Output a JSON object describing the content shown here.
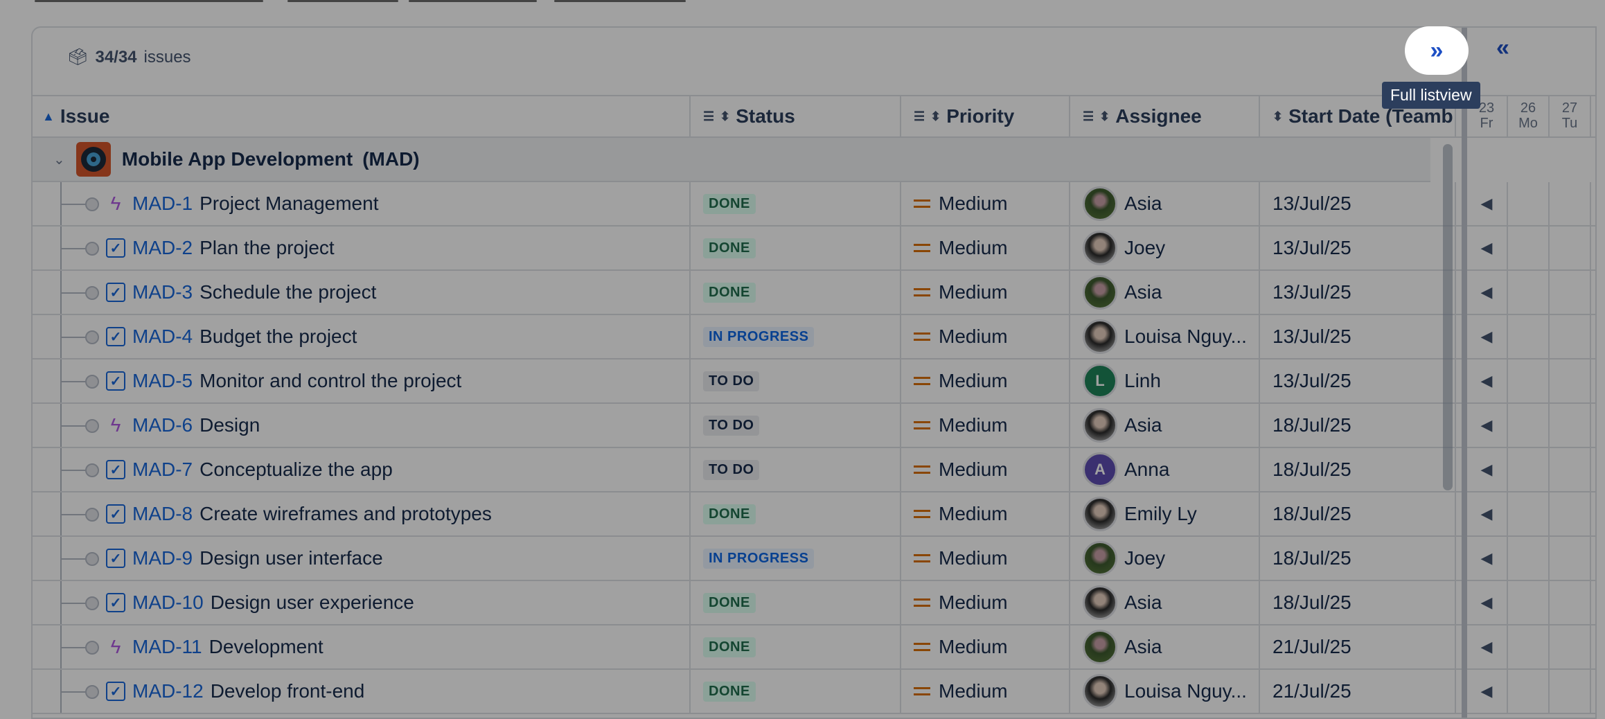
{
  "toolbar": {
    "count": "34/34",
    "count_suffix": "issues",
    "full_listview_icon": "chevrons-right-icon",
    "collapse_icon": "chevrons-left-icon",
    "tooltip": "Full listview"
  },
  "columns": {
    "issue": "Issue",
    "status": "Status",
    "priority": "Priority",
    "assignee": "Assignee",
    "start_date": "Start Date (Teamb"
  },
  "timeline": {
    "days": [
      {
        "num": "23",
        "dow": "Fr"
      },
      {
        "num": "26",
        "dow": "Mo"
      },
      {
        "num": "27",
        "dow": "Tu"
      }
    ]
  },
  "group": {
    "name": "Mobile App Development",
    "key": "(MAD)"
  },
  "status_colors": {
    "DONE": {
      "bg": "#dcfff1",
      "fg": "#216e4e"
    },
    "IN PROGRESS": {
      "bg": "#e9f2ff",
      "fg": "#0c66e4"
    },
    "TO DO": {
      "bg": "#ebecf0",
      "fg": "#172b4d"
    }
  },
  "rows": [
    {
      "key": "MAD-1",
      "summary": "Project Management",
      "type": "epic",
      "status": "DONE",
      "priority": "Medium",
      "assignee": "Asia",
      "avatar": "photo",
      "start": "13/Jul/25"
    },
    {
      "key": "MAD-2",
      "summary": "Plan the project",
      "type": "task",
      "status": "DONE",
      "priority": "Medium",
      "assignee": "Joey",
      "avatar": "photo",
      "start": "13/Jul/25"
    },
    {
      "key": "MAD-3",
      "summary": "Schedule the project",
      "type": "task",
      "status": "DONE",
      "priority": "Medium",
      "assignee": "Asia",
      "avatar": "photo",
      "start": "13/Jul/25"
    },
    {
      "key": "MAD-4",
      "summary": "Budget the project",
      "type": "task",
      "status": "IN PROGRESS",
      "priority": "Medium",
      "assignee": "Louisa Nguy...",
      "avatar": "photo",
      "start": "13/Jul/25"
    },
    {
      "key": "MAD-5",
      "summary": "Monitor and control the project",
      "type": "task",
      "status": "TO DO",
      "priority": "Medium",
      "assignee": "Linh",
      "avatar": "L",
      "avatar_color": "#1f845a",
      "start": "13/Jul/25"
    },
    {
      "key": "MAD-6",
      "summary": "Design",
      "type": "epic",
      "status": "TO DO",
      "priority": "Medium",
      "assignee": "Asia",
      "avatar": "photo",
      "start": "18/Jul/25"
    },
    {
      "key": "MAD-7",
      "summary": "Conceptualize the app",
      "type": "task",
      "status": "TO DO",
      "priority": "Medium",
      "assignee": "Anna",
      "avatar": "A",
      "avatar_color": "#5e4db2",
      "start": "18/Jul/25"
    },
    {
      "key": "MAD-8",
      "summary": "Create wireframes and prototypes",
      "type": "task",
      "status": "DONE",
      "priority": "Medium",
      "assignee": "Emily Ly",
      "avatar": "photo",
      "start": "18/Jul/25"
    },
    {
      "key": "MAD-9",
      "summary": "Design user interface",
      "type": "task",
      "status": "IN PROGRESS",
      "priority": "Medium",
      "assignee": "Joey",
      "avatar": "photo",
      "start": "18/Jul/25"
    },
    {
      "key": "MAD-10",
      "summary": "Design user experience",
      "type": "task",
      "status": "DONE",
      "priority": "Medium",
      "assignee": "Asia",
      "avatar": "photo",
      "start": "18/Jul/25"
    },
    {
      "key": "MAD-11",
      "summary": "Development",
      "type": "epic",
      "status": "DONE",
      "priority": "Medium",
      "assignee": "Asia",
      "avatar": "photo",
      "start": "21/Jul/25"
    },
    {
      "key": "MAD-12",
      "summary": "Develop front-end",
      "type": "task",
      "status": "DONE",
      "priority": "Medium",
      "assignee": "Louisa Nguy...",
      "avatar": "photo",
      "start": "21/Jul/25"
    }
  ]
}
